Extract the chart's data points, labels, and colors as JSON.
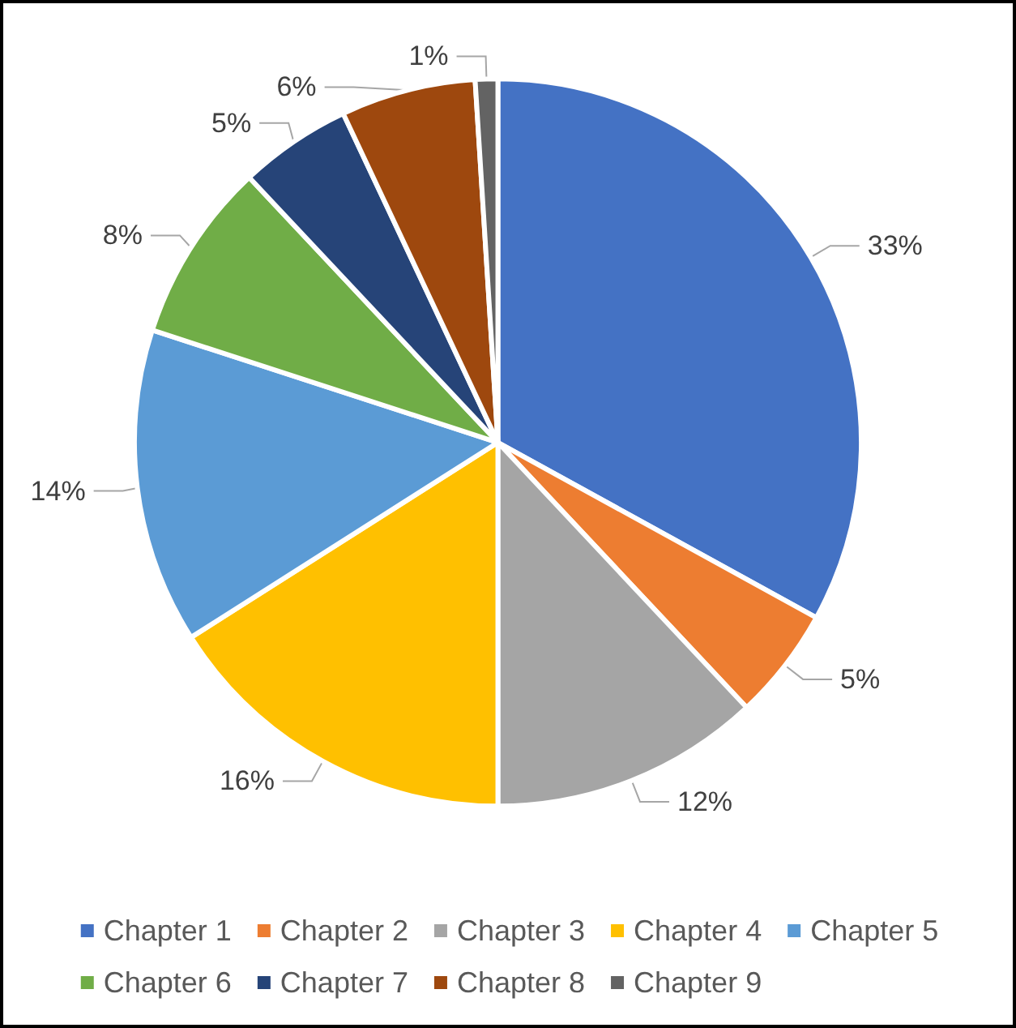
{
  "chart_data": {
    "type": "pie",
    "categories": [
      "Chapter 1",
      "Chapter 2",
      "Chapter 3",
      "Chapter 4",
      "Chapter 5",
      "Chapter 6",
      "Chapter 7",
      "Chapter 8",
      "Chapter 9"
    ],
    "values": [
      33,
      5,
      12,
      16,
      14,
      8,
      5,
      6,
      1
    ],
    "colors": [
      "#4472c4",
      "#ed7d31",
      "#a5a5a5",
      "#ffc000",
      "#5b9bd5",
      "#70ad47",
      "#264478",
      "#9e480e",
      "#636363"
    ],
    "value_labels": [
      "33%",
      "5%",
      "12%",
      "16%",
      "14%",
      "8%",
      "5%",
      "6%",
      "1%"
    ],
    "legend": "bottom"
  }
}
